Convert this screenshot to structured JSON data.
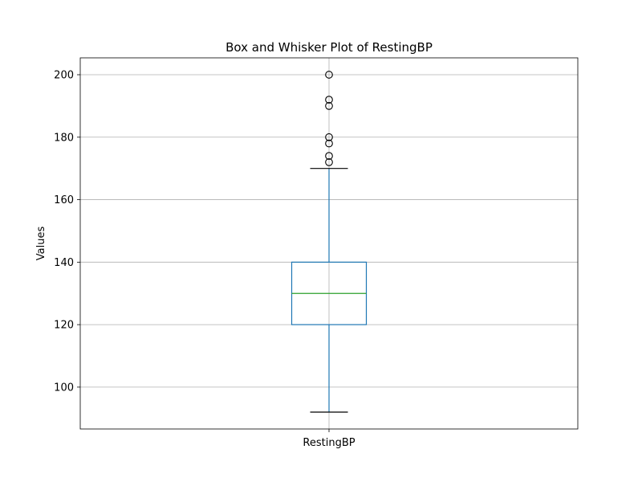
{
  "chart_data": {
    "type": "box",
    "title": "Box and Whisker Plot of RestingBP",
    "ylabel": "Values",
    "xlabel": "",
    "categories": [
      "RestingBP"
    ],
    "ylim": [
      86.6,
      205.4
    ],
    "yticks": [
      100,
      120,
      140,
      160,
      180,
      200
    ],
    "grid": true,
    "series": [
      {
        "name": "RestingBP",
        "whisker_low": 92,
        "q1": 120,
        "median": 130,
        "q3": 140,
        "whisker_high": 170,
        "outliers": [
          172,
          174,
          178,
          180,
          190,
          192,
          200
        ]
      }
    ],
    "colors": {
      "box": "#1f77b4",
      "median": "#2ca02c",
      "caps": "#000000",
      "outliers": "#000000"
    }
  }
}
